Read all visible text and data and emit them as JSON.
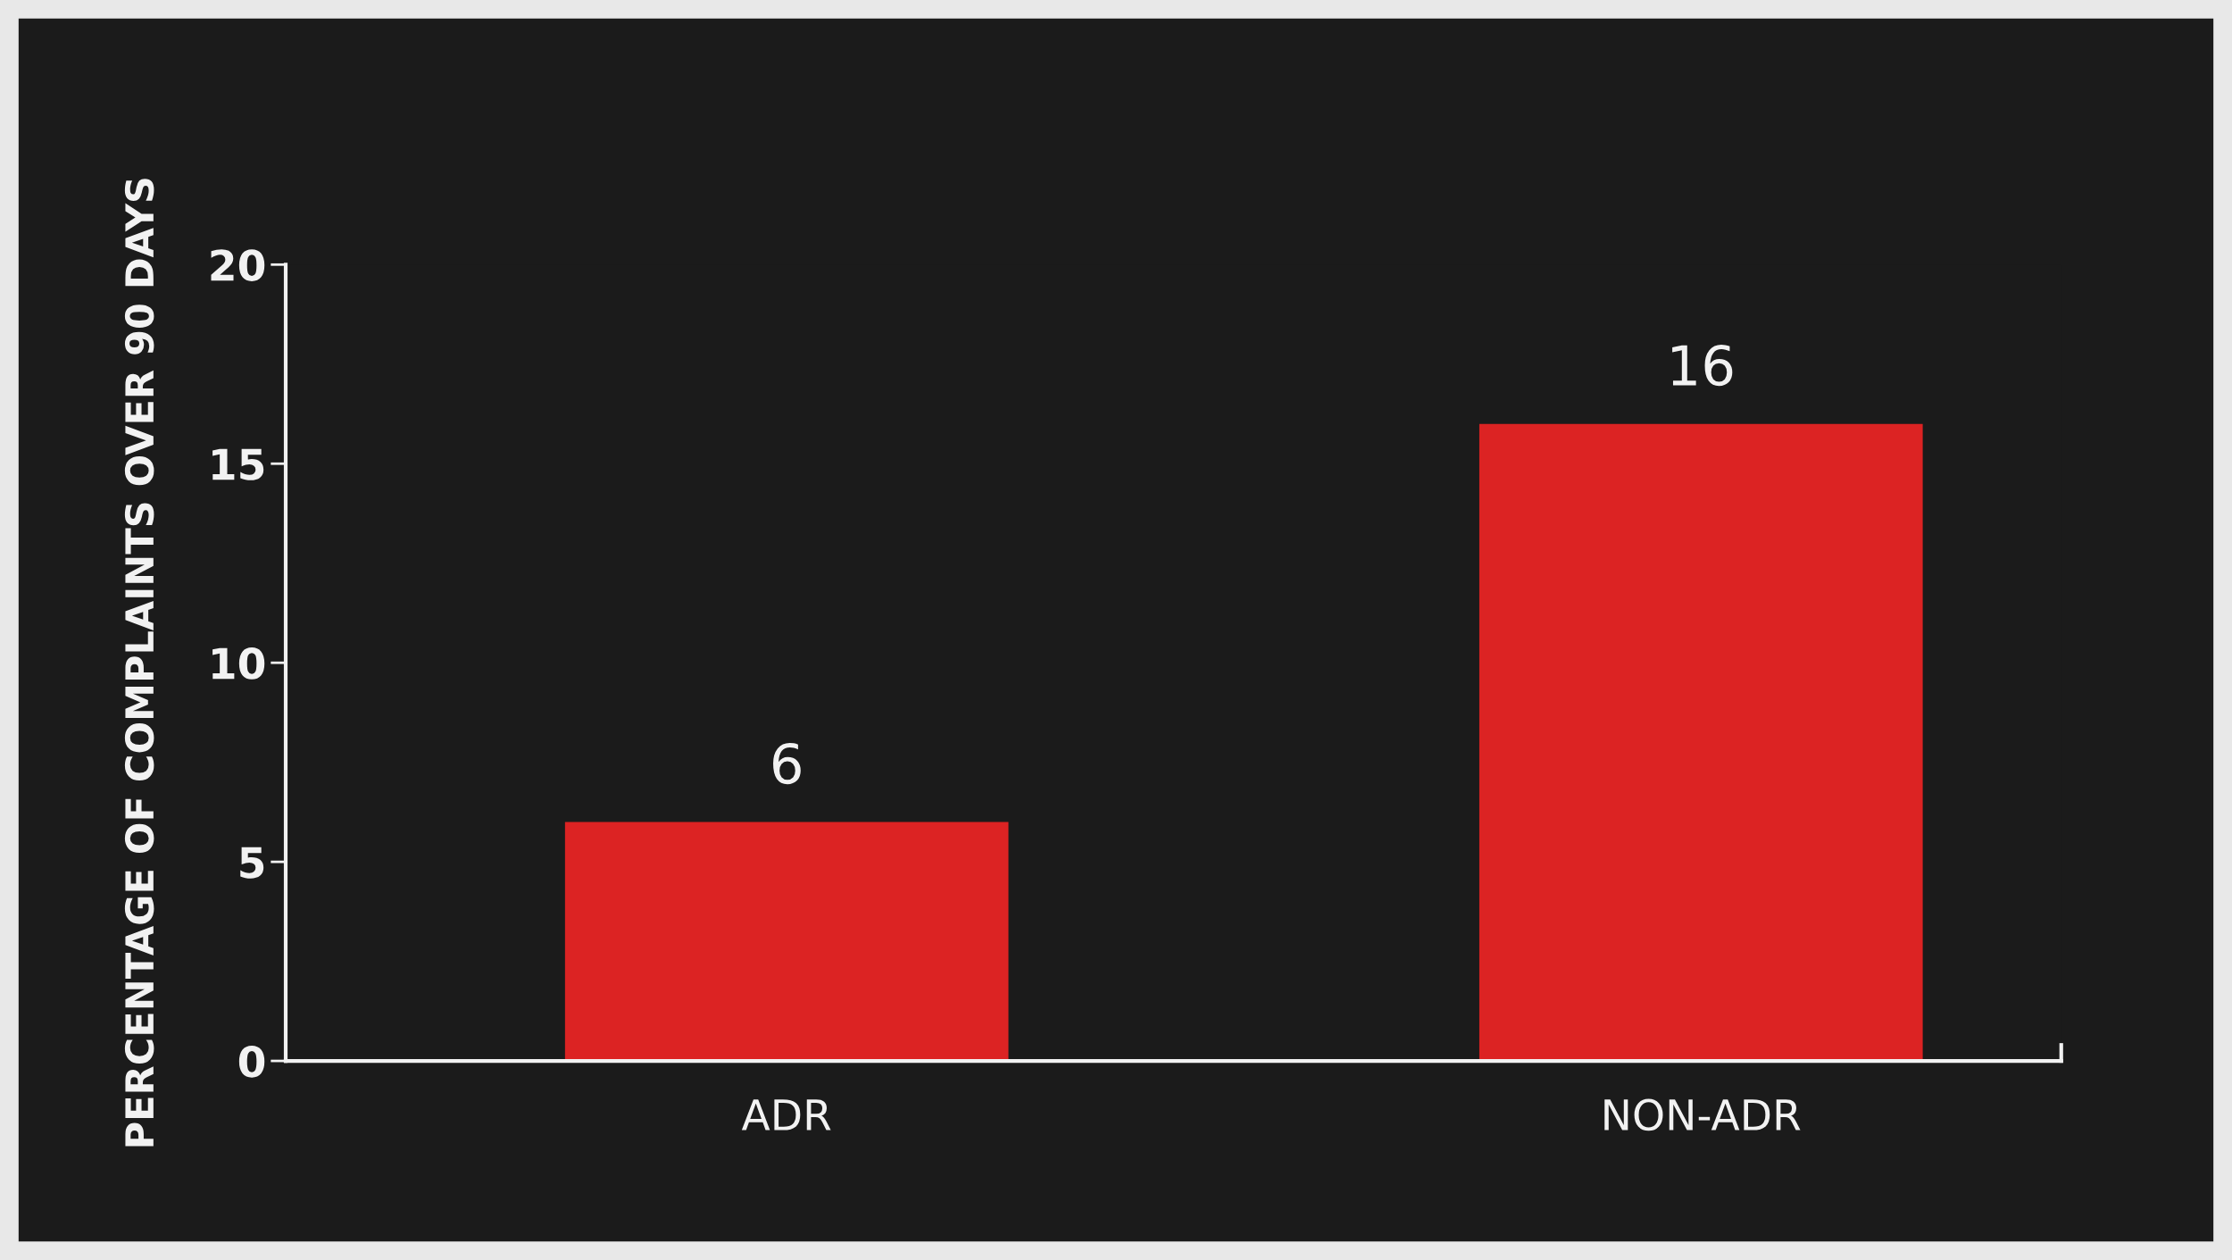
{
  "chart_data": {
    "type": "bar",
    "ylabel": "PERCENTAGE OF COMPLAINTS OVER 90 DAYS",
    "categories": [
      "ADR",
      "NON-ADR"
    ],
    "values": [
      6,
      16
    ],
    "color": "#dc2323",
    "ylim": [
      0,
      20
    ],
    "yticks": [
      0,
      5,
      10,
      15,
      20
    ],
    "data_labels": true,
    "grid": false,
    "legend": false
  }
}
